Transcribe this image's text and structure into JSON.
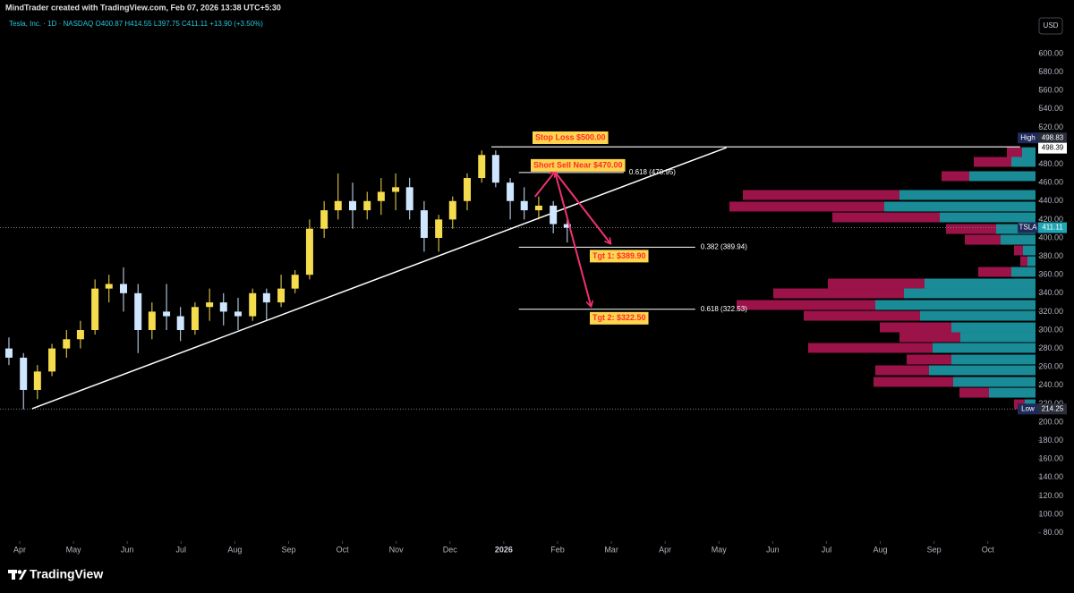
{
  "header": {
    "byline": "MindTrader created with TradingView.com, Feb 07, 2026 13:38 UTC+5:30",
    "legend": "Tesla, Inc. · 1D · NASDAQ  O400.87 H414.55 L397.75 C411.11 +13.90 (+3.50%)",
    "currency": "USD"
  },
  "footer": {
    "brand": "TradingView"
  },
  "chart_data": {
    "type": "candlestick",
    "xlim": [
      -0.366,
      18.603
    ],
    "ylim": [
      70.9,
      638.8
    ],
    "xticks": [
      {
        "value": 0,
        "label": "Apr"
      },
      {
        "value": 1,
        "label": "May"
      },
      {
        "value": 2,
        "label": "Jun"
      },
      {
        "value": 3,
        "label": "Jul"
      },
      {
        "value": 4,
        "label": "Aug"
      },
      {
        "value": 5,
        "label": "Sep"
      },
      {
        "value": 6,
        "label": "Oct"
      },
      {
        "value": 7,
        "label": "Nov"
      },
      {
        "value": 8,
        "label": "Dec"
      },
      {
        "value": 9,
        "label": "2026"
      },
      {
        "value": 10,
        "label": "Feb"
      },
      {
        "value": 11,
        "label": "Mar"
      },
      {
        "value": 12,
        "label": "Apr"
      },
      {
        "value": 13,
        "label": "May"
      },
      {
        "value": 14,
        "label": "Jun"
      },
      {
        "value": 15,
        "label": "Jul"
      },
      {
        "value": 16,
        "label": "Aug"
      },
      {
        "value": 17,
        "label": "Sep"
      },
      {
        "value": 18,
        "label": "Oct"
      }
    ],
    "yticks": [
      {
        "value": 80,
        "label": "80.00"
      },
      {
        "value": 100,
        "label": "100.00"
      },
      {
        "value": 120,
        "label": "120.00"
      },
      {
        "value": 140,
        "label": "140.00"
      },
      {
        "value": 160,
        "label": "160.00"
      },
      {
        "value": 180,
        "label": "180.00"
      },
      {
        "value": 200,
        "label": "200.00"
      },
      {
        "value": 220,
        "label": "220.00"
      },
      {
        "value": 240,
        "label": "240.00"
      },
      {
        "value": 260,
        "label": "260.00"
      },
      {
        "value": 280,
        "label": "280.00"
      },
      {
        "value": 300,
        "label": "300.00"
      },
      {
        "value": 320,
        "label": "320.00"
      },
      {
        "value": 340,
        "label": "340.00"
      },
      {
        "value": 360,
        "label": "360.00"
      },
      {
        "value": 380,
        "label": "380.00"
      },
      {
        "value": 400,
        "label": "400.00"
      },
      {
        "value": 420,
        "label": "420.00"
      },
      {
        "value": 440,
        "label": "440.00"
      },
      {
        "value": 460,
        "label": "460.00"
      },
      {
        "value": 480,
        "label": "480.00"
      },
      {
        "value": 500,
        "label": "500.00"
      },
      {
        "value": 520,
        "label": "520.00"
      },
      {
        "value": 540,
        "label": "540.00"
      },
      {
        "value": 560,
        "label": "560.00"
      },
      {
        "value": 580,
        "label": "580.00"
      },
      {
        "value": 600,
        "label": "600.00"
      }
    ],
    "up_color": "#f5dc4e",
    "down_color": "#cfe6ff",
    "x": [
      -0.2,
      0.07,
      0.33,
      0.6,
      0.87,
      1.13,
      1.4,
      1.66,
      1.93,
      2.2,
      2.46,
      2.73,
      2.99,
      3.26,
      3.53,
      3.79,
      4.06,
      4.33,
      4.59,
      4.86,
      5.12,
      5.39,
      5.66,
      5.92,
      6.19,
      6.46,
      6.72,
      6.99,
      7.25,
      7.52,
      7.79,
      8.05,
      8.32,
      8.59,
      8.85,
      9.12,
      9.38,
      9.65,
      9.92,
      10.18
    ],
    "open": [
      280,
      270,
      235,
      255,
      280,
      290,
      300,
      345,
      350,
      340,
      300,
      320,
      315,
      300,
      325,
      330,
      320,
      315,
      340,
      330,
      345,
      360,
      410,
      430,
      440,
      430,
      440,
      450,
      455,
      430,
      400,
      420,
      440,
      465,
      490,
      460,
      440,
      430,
      435,
      415
    ],
    "high": [
      292,
      275,
      262,
      285,
      300,
      310,
      355,
      360,
      368,
      350,
      330,
      350,
      325,
      330,
      345,
      340,
      335,
      345,
      345,
      360,
      365,
      420,
      440,
      470,
      460,
      450,
      465,
      470,
      465,
      440,
      425,
      445,
      470,
      495,
      495,
      465,
      455,
      445,
      440,
      420
    ],
    "low": [
      262,
      214,
      225,
      250,
      270,
      280,
      295,
      330,
      320,
      275,
      290,
      300,
      288,
      295,
      310,
      305,
      300,
      310,
      310,
      325,
      340,
      355,
      400,
      420,
      410,
      420,
      425,
      430,
      420,
      385,
      385,
      410,
      430,
      460,
      455,
      420,
      420,
      420,
      405,
      395
    ],
    "close": [
      270,
      235,
      255,
      280,
      290,
      300,
      345,
      350,
      340,
      300,
      320,
      315,
      300,
      325,
      330,
      320,
      315,
      340,
      330,
      345,
      360,
      410,
      430,
      440,
      430,
      440,
      450,
      455,
      430,
      400,
      420,
      440,
      465,
      490,
      460,
      440,
      430,
      435,
      415,
      411
    ],
    "volume_profile": {
      "sell_color": "#c2185b",
      "buy_color": "#1fa5b3",
      "prices": [
        493,
        482.5,
        467,
        446.6,
        434,
        422.3,
        409.7,
        398,
        386.4,
        374.7,
        363.1,
        350.5,
        339.8,
        327.2,
        315.5,
        302.9,
        292.2,
        280.6,
        268,
        256.3,
        243.7,
        232,
        219.4
      ],
      "sell": [
        17,
        42,
        31,
        175,
        173,
        120,
        56,
        40,
        10,
        8,
        37,
        108,
        146,
        155,
        130,
        80,
        68,
        139,
        50,
        60,
        89,
        33,
        12
      ],
      "buy": [
        15,
        27,
        74,
        152,
        169,
        107,
        44,
        39,
        14,
        9,
        27,
        124,
        147,
        179,
        129,
        94,
        84,
        115,
        94,
        119,
        92,
        52,
        12
      ]
    },
    "trendline": {
      "x": [
        0.23,
        13.14
      ],
      "y": [
        214.6,
        498
      ]
    },
    "high_line": {
      "x": [
        8.77,
        18.6
      ],
      "y": [
        498.83,
        498.83
      ]
    },
    "arrows": [
      {
        "x": [
          9.58,
          9.95
        ],
        "y": [
          444.7,
          471.8
        ]
      },
      {
        "x": [
          9.95,
          10.98
        ],
        "y": [
          471.8,
          394.2
        ]
      },
      {
        "x": [
          9.95,
          10.62
        ],
        "y": [
          471.8,
          326.2
        ]
      }
    ],
    "levels": [
      {
        "label": "0.618 (470.95)",
        "price": 470.95,
        "x": [
          9.28,
          11.23
        ]
      },
      {
        "label": "0.382 (389.94)",
        "price": 389.94,
        "x": [
          9.28,
          12.56
        ]
      },
      {
        "label": "0.618 (322.53)",
        "price": 322.53,
        "x": [
          9.28,
          12.56
        ]
      }
    ],
    "callouts": [
      {
        "text": "Stop Loss $500.00",
        "price": 500
      },
      {
        "text": "Short Sell Near $470.00",
        "price": 470
      },
      {
        "text": "Tgt 1: $389.90",
        "price": 389.9
      },
      {
        "text": "Tgt 2: $322.50",
        "price": 322.5
      }
    ],
    "price_tags": {
      "high": {
        "label": "High",
        "value": 498.83
      },
      "marker": 498.39,
      "last": {
        "label": "TSLA",
        "value": 411.11
      },
      "low": {
        "label": "Low",
        "value": 214.25
      }
    }
  }
}
